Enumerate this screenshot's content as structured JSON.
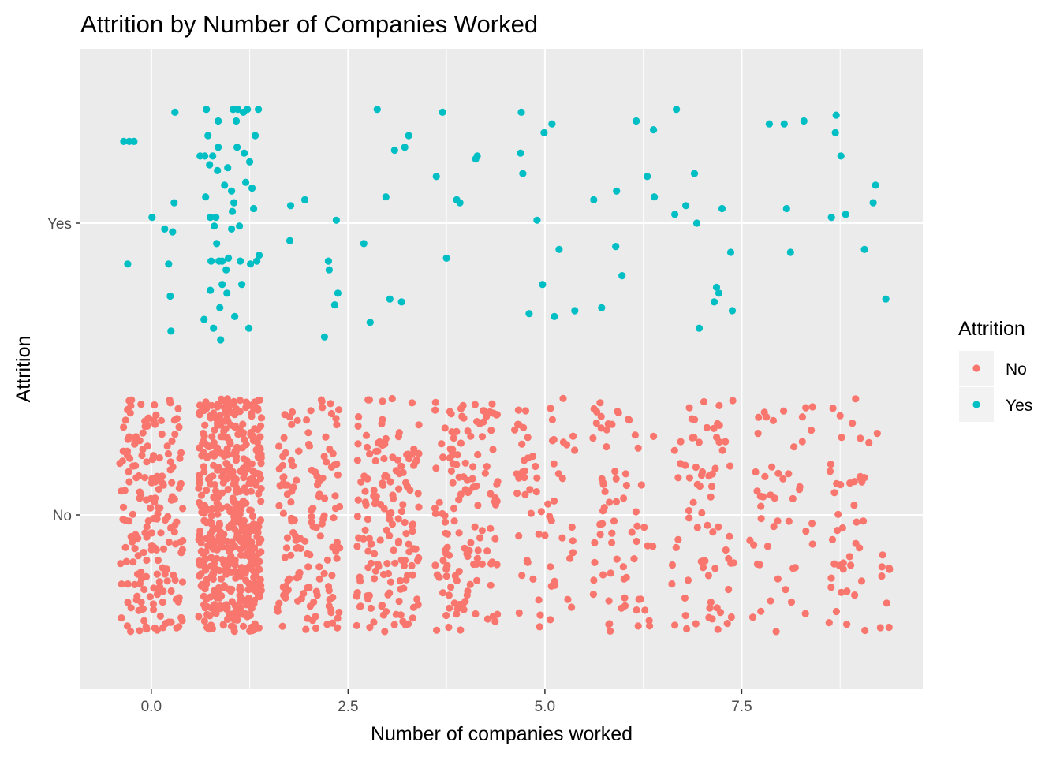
{
  "chart_data": {
    "type": "scatter",
    "title": "Attrition by Number of Companies Worked",
    "xlabel": "Number of companies worked",
    "ylabel": "Attrition",
    "xlim": [
      -0.9,
      9.8
    ],
    "x_ticks": [
      0.0,
      2.5,
      5.0,
      7.5
    ],
    "x_tick_labels": [
      "0.0",
      "2.5",
      "5.0",
      "7.5"
    ],
    "categories": [
      "No",
      "Yes"
    ],
    "jitter": {
      "x": 0.4,
      "y": 0.4
    },
    "grid": true,
    "legend": {
      "title": "Attrition",
      "position": "right"
    },
    "series": [
      {
        "name": "No",
        "color": "#F8766D",
        "counts_by_companies": [
          197,
          521,
          146,
          159,
          139,
          63,
          70,
          74,
          49,
          52
        ]
      },
      {
        "name": "Yes",
        "color": "#00BFC4",
        "points": [
          [
            -0.35,
            1.28
          ],
          [
            -0.28,
            1.28
          ],
          [
            -0.22,
            1.28
          ],
          [
            -0.3,
            0.86
          ],
          [
            0.01,
            1.02
          ],
          [
            0.17,
            0.98
          ],
          [
            0.22,
            0.86
          ],
          [
            0.24,
            0.75
          ],
          [
            0.27,
            0.97
          ],
          [
            0.25,
            0.63
          ],
          [
            0.29,
            1.07
          ],
          [
            0.3,
            1.38
          ],
          [
            0.62,
            1.23
          ],
          [
            0.68,
            1.23
          ],
          [
            0.7,
            1.39
          ],
          [
            0.69,
            1.09
          ],
          [
            0.67,
            0.67
          ],
          [
            0.72,
            1.3
          ],
          [
            0.74,
            1.2
          ],
          [
            0.75,
            1.02
          ],
          [
            0.75,
            0.77
          ],
          [
            0.76,
            0.87
          ],
          [
            0.78,
            1.23
          ],
          [
            0.79,
            0.64
          ],
          [
            0.8,
            0.99
          ],
          [
            0.82,
            1.02
          ],
          [
            0.83,
            0.93
          ],
          [
            0.84,
            1.18
          ],
          [
            0.85,
            1.35
          ],
          [
            0.85,
            1.26
          ],
          [
            0.86,
            0.87
          ],
          [
            0.87,
            0.71
          ],
          [
            0.88,
            0.6
          ],
          [
            0.9,
            0.79
          ],
          [
            0.9,
            0.87
          ],
          [
            0.93,
            1.13
          ],
          [
            0.95,
            0.84
          ],
          [
            0.96,
            0.76
          ],
          [
            0.97,
            1.19
          ],
          [
            0.98,
            0.88
          ],
          [
            1.02,
            1.11
          ],
          [
            1.02,
            0.98
          ],
          [
            1.03,
            1.04
          ],
          [
            1.04,
            1.39
          ],
          [
            1.05,
            1.07
          ],
          [
            1.06,
            0.68
          ],
          [
            1.08,
            1.35
          ],
          [
            1.09,
            1.26
          ],
          [
            1.1,
            1.39
          ],
          [
            1.12,
            0.99
          ],
          [
            1.13,
            0.87
          ],
          [
            1.15,
            0.79
          ],
          [
            1.17,
            1.38
          ],
          [
            1.18,
            1.24
          ],
          [
            1.2,
            1.14
          ],
          [
            1.22,
            1.39
          ],
          [
            1.24,
            0.64
          ],
          [
            1.25,
            1.21
          ],
          [
            1.26,
            0.86
          ],
          [
            1.28,
            1.12
          ],
          [
            1.3,
            1.05
          ],
          [
            1.32,
            1.3
          ],
          [
            1.34,
            0.87
          ],
          [
            1.36,
            1.39
          ],
          [
            1.37,
            0.89
          ],
          [
            1.76,
            0.94
          ],
          [
            1.77,
            1.06
          ],
          [
            1.95,
            1.08
          ],
          [
            2.2,
            0.61
          ],
          [
            2.25,
            0.87
          ],
          [
            2.26,
            0.84
          ],
          [
            2.33,
            0.72
          ],
          [
            2.35,
            1.01
          ],
          [
            2.37,
            0.76
          ],
          [
            2.7,
            0.93
          ],
          [
            2.78,
            0.66
          ],
          [
            2.87,
            1.39
          ],
          [
            2.98,
            1.09
          ],
          [
            3.03,
            0.74
          ],
          [
            3.09,
            1.25
          ],
          [
            3.18,
            0.73
          ],
          [
            3.22,
            1.26
          ],
          [
            3.27,
            1.3
          ],
          [
            3.62,
            1.16
          ],
          [
            3.7,
            1.38
          ],
          [
            3.75,
            0.88
          ],
          [
            3.88,
            1.08
          ],
          [
            3.92,
            1.07
          ],
          [
            4.12,
            1.22
          ],
          [
            4.14,
            1.23
          ],
          [
            4.69,
            1.24
          ],
          [
            4.7,
            1.38
          ],
          [
            4.72,
            1.17
          ],
          [
            4.8,
            0.69
          ],
          [
            4.9,
            1.01
          ],
          [
            4.97,
            0.79
          ],
          [
            4.99,
            1.31
          ],
          [
            5.09,
            1.34
          ],
          [
            5.12,
            0.68
          ],
          [
            5.18,
            0.91
          ],
          [
            5.38,
            0.7
          ],
          [
            5.62,
            1.08
          ],
          [
            5.72,
            0.71
          ],
          [
            5.9,
            0.92
          ],
          [
            5.91,
            1.11
          ],
          [
            5.98,
            0.82
          ],
          [
            6.16,
            1.35
          ],
          [
            6.3,
            1.16
          ],
          [
            6.38,
            1.32
          ],
          [
            6.39,
            1.09
          ],
          [
            6.65,
            1.03
          ],
          [
            6.67,
            1.39
          ],
          [
            6.79,
            1.06
          ],
          [
            6.9,
            1.17
          ],
          [
            6.93,
            1
          ],
          [
            6.96,
            0.64
          ],
          [
            7.15,
            0.73
          ],
          [
            7.18,
            0.78
          ],
          [
            7.21,
            0.76
          ],
          [
            7.25,
            1.05
          ],
          [
            7.36,
            0.9
          ],
          [
            7.38,
            0.7
          ],
          [
            7.85,
            1.34
          ],
          [
            8.04,
            1.34
          ],
          [
            8.07,
            1.05
          ],
          [
            8.12,
            0.9
          ],
          [
            8.29,
            1.35
          ],
          [
            8.64,
            1.02
          ],
          [
            8.69,
            1.31
          ],
          [
            8.7,
            1.37
          ],
          [
            8.76,
            1.23
          ],
          [
            8.82,
            1.03
          ],
          [
            9.06,
            0.91
          ],
          [
            9.17,
            1.07
          ],
          [
            9.2,
            1.13
          ],
          [
            9.33,
            0.74
          ]
        ]
      }
    ]
  }
}
